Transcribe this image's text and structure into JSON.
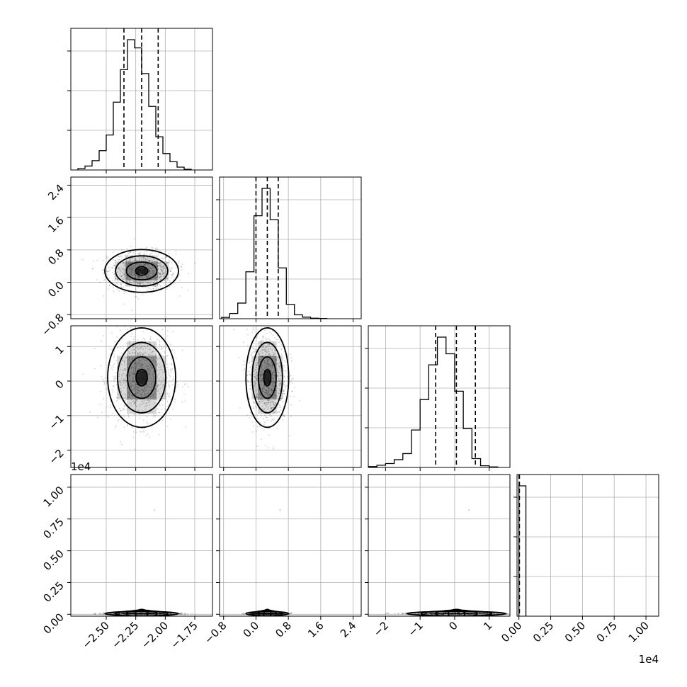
{
  "chart_data": {
    "type": "corner",
    "grid": true,
    "dimensions": [
      {
        "ticks": [
          -2.5,
          -2.25,
          -2.0,
          -1.75
        ],
        "tick_labels": [
          "−2.50",
          "−2.25",
          "−2.00",
          "−1.75"
        ],
        "range": [
          -2.8,
          -1.6
        ],
        "quantiles": [
          -2.35,
          -2.2,
          -2.06
        ],
        "hist_edges_start": -2.74,
        "hist_bin_width": 0.06,
        "hist_counts": [
          4,
          11,
          26,
          54,
          98,
          190,
          281,
          365,
          342,
          270,
          178,
          93,
          46,
          23,
          8,
          2
        ]
      },
      {
        "ticks": [
          -0.8,
          0.0,
          0.8,
          1.6,
          2.4
        ],
        "tick_labels": [
          "−0.8",
          "0.0",
          "0.8",
          "1.6",
          "2.4"
        ],
        "range": [
          -0.9,
          2.6
        ],
        "quantiles": [
          0.0,
          0.28,
          0.55
        ],
        "hist_edges_start": -0.85,
        "hist_bin_width": 0.2,
        "hist_counts": [
          5,
          20,
          60,
          180,
          395,
          500,
          380,
          195,
          55,
          15,
          6,
          2,
          1
        ]
      },
      {
        "ticks": [
          -2,
          -1,
          0,
          1
        ],
        "tick_labels": [
          "−2",
          "−1",
          "0",
          "1"
        ],
        "range": [
          -2.5,
          1.6
        ],
        "quantiles": [
          -0.55,
          0.05,
          0.6
        ],
        "hist_edges_start": -2.5,
        "hist_bin_width": 0.25,
        "hist_counts": [
          3,
          8,
          14,
          28,
          50,
          135,
          245,
          370,
          470,
          410,
          275,
          140,
          32,
          6,
          2
        ]
      },
      {
        "ticks": [
          0.0,
          2500,
          5000,
          7500,
          10000
        ],
        "tick_labels": [
          "0.00",
          "0.25",
          "0.50",
          "0.75",
          "1.00"
        ],
        "offset_label": "1e4",
        "range": [
          -150,
          11000
        ],
        "quantiles": [
          10,
          20,
          40
        ],
        "hist_edges_start": 0,
        "hist_bin_width": 550,
        "hist_counts": [
          1000
        ]
      }
    ],
    "blobs": [
      {
        "row": 1,
        "col": 0,
        "cx": -2.2,
        "cy": 0.28,
        "sx": 0.13,
        "sy": 0.22
      },
      {
        "row": 2,
        "col": 0,
        "cx": -2.2,
        "cy": 0.1,
        "sx": 0.12,
        "sy": 0.6
      },
      {
        "row": 2,
        "col": 1,
        "cx": 0.28,
        "cy": 0.1,
        "sx": 0.22,
        "sy": 0.6
      },
      {
        "row": 3,
        "col": 0,
        "cx": -2.2,
        "cy": 50,
        "sx": 0.13,
        "sy": 30
      },
      {
        "row": 3,
        "col": 1,
        "cx": 0.28,
        "cy": 50,
        "sx": 0.22,
        "sy": 30
      },
      {
        "row": 3,
        "col": 2,
        "cx": 0.05,
        "cy": 50,
        "sx": 0.6,
        "sy": 30
      }
    ],
    "outlier_point": {
      "y": 8200
    }
  }
}
